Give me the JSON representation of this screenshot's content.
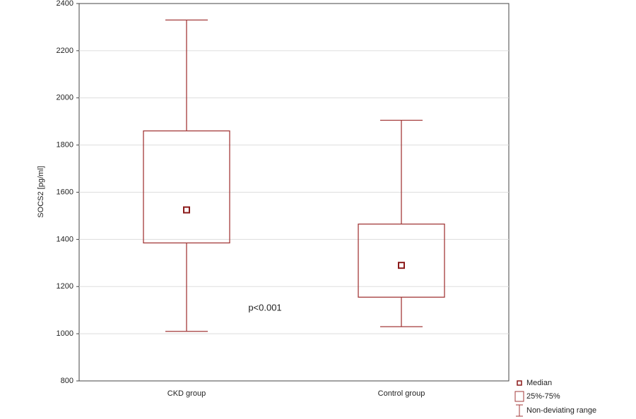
{
  "chart_data": {
    "type": "box",
    "ylabel": "SOCS2 [pg/ml]",
    "categories": [
      "CKD group",
      "Control group"
    ],
    "median": [
      1525,
      1290
    ],
    "q1": [
      1385,
      1155
    ],
    "q3": [
      1860,
      1465
    ],
    "whisker_low": [
      1010,
      1030
    ],
    "whisker_high": [
      2330,
      1905
    ],
    "color": "#a33a3a",
    "median_color": "#8b1a1a",
    "ylim": [
      800,
      2400
    ],
    "yticks": [
      800,
      1000,
      1200,
      1400,
      1600,
      1800,
      2000,
      2200,
      2400
    ],
    "grid": true,
    "annotation": "p<0.001",
    "legend": [
      "Median",
      "25%-75%",
      "Non-deviating range"
    ]
  }
}
